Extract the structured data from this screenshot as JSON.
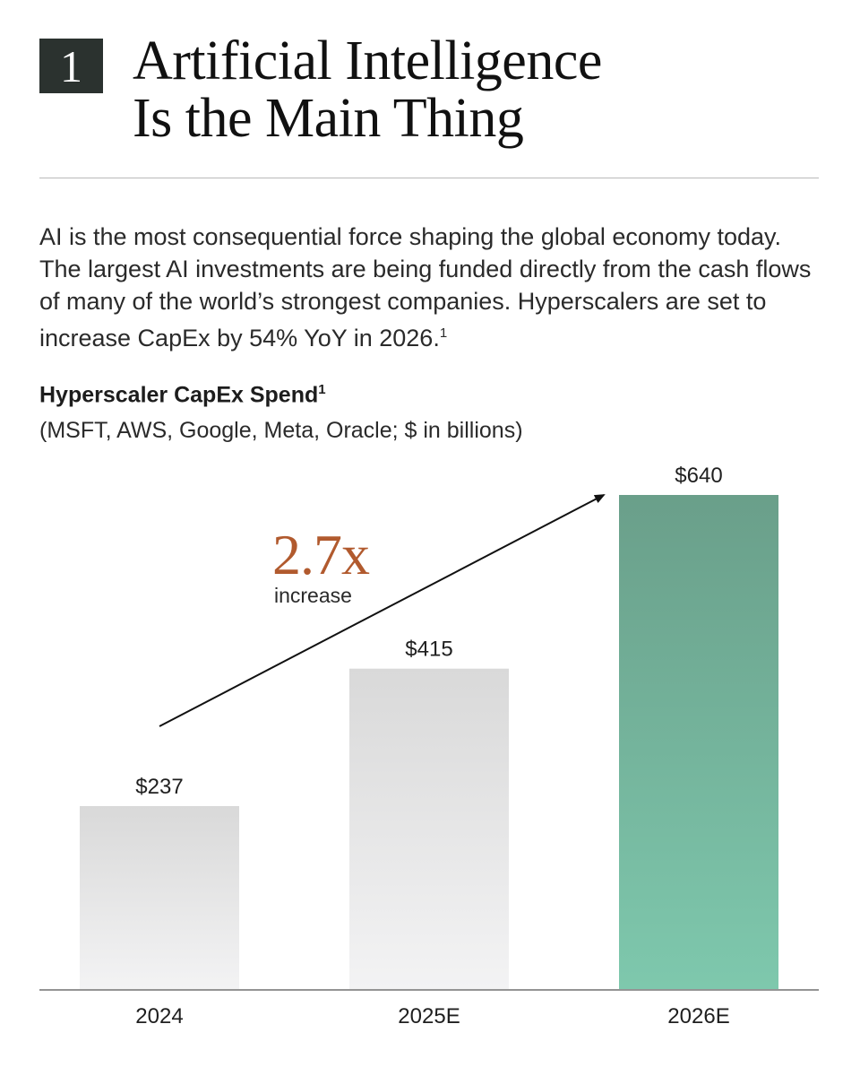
{
  "header": {
    "section_number": "1",
    "title_line1": "Artificial Intelligence",
    "title_line2": "Is the Main Thing"
  },
  "intro": {
    "text": "AI is the most consequential force shaping the global economy today. The largest AI investments are being funded directly from the cash flows of many of the world’s strongest companies. Hyperscalers are set to increase CapEx by 54% YoY in 2026.",
    "footnote": "1"
  },
  "chart_data": {
    "type": "bar",
    "title": "Hyperscaler CapEx Spend",
    "title_footnote": "1",
    "subtitle": "(MSFT, AWS, Google, Meta, Oracle; $ in billions)",
    "categories": [
      "2024",
      "2025E",
      "2026E"
    ],
    "values": [
      237,
      415,
      640
    ],
    "value_labels": [
      "$237",
      "$415",
      "$640"
    ],
    "ylim": [
      0,
      640
    ],
    "grid": false,
    "annotation": {
      "value": "2.7x",
      "caption": "increase"
    },
    "colors": {
      "gray_top": "#d9d9d9",
      "gray_bottom": "#f3f3f4",
      "highlight_top": "#6a9f8a",
      "highlight_bottom": "#7ec8ad",
      "annotation": "#b15a2e"
    }
  }
}
